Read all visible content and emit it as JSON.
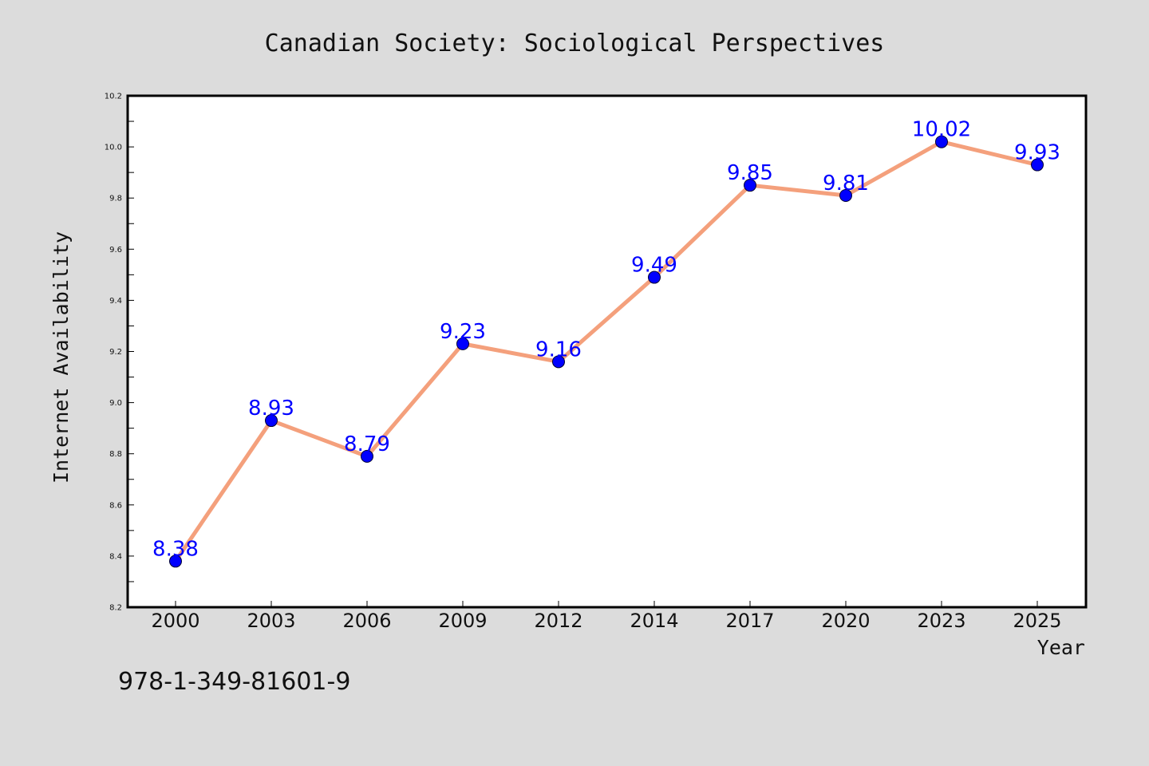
{
  "chart_data": {
    "type": "line",
    "title": "Canadian Society: Sociological Perspectives",
    "xlabel": "Year",
    "ylabel": "Internet Availability",
    "categories": [
      "2000",
      "2003",
      "2006",
      "2009",
      "2012",
      "2014",
      "2017",
      "2020",
      "2023",
      "2025"
    ],
    "series": [
      {
        "values": [
          8.38,
          8.93,
          8.79,
          9.23,
          9.16,
          9.49,
          9.85,
          9.81,
          10.02,
          9.93
        ],
        "line_color": "#f4a07c",
        "marker_color": "#0000ff"
      }
    ],
    "data_labels": [
      "8.38",
      "8.93",
      "8.79",
      "9.23",
      "9.16",
      "9.49",
      "9.85",
      "9.81",
      "10.02",
      "9.93"
    ],
    "ylim": [
      8.2,
      10.2
    ],
    "y_ticks": [
      "8.2",
      "8.4",
      "8.6",
      "8.8",
      "9.0",
      "9.2",
      "9.4",
      "9.6",
      "9.8",
      "10.0",
      "10.2"
    ],
    "grid": false,
    "legend": "none"
  },
  "footer": {
    "isbn": "978-1-349-81601-9"
  },
  "colors": {
    "background": "#dcdcdc",
    "plot_background": "#ffffff",
    "line": "#f4a07c",
    "marker": "#0000ff",
    "label": "#0000ff"
  }
}
